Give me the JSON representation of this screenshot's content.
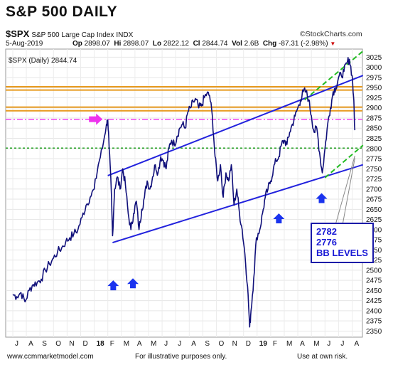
{
  "header": {
    "title": "S&P 500 DAILY",
    "symbol": "$SPX",
    "name": "S&P 500 Large Cap Index",
    "exchange": "INDX",
    "brand": "©StockCharts.com",
    "date": "5-Aug-2019",
    "op_label": "Op",
    "op": "2898.07",
    "hi_label": "Hi",
    "hi": "2898.07",
    "lo_label": "Lo",
    "lo": "2822.12",
    "cl_label": "Cl",
    "cl": "2844.74",
    "vol_label": "Vol",
    "vol": "2.6B",
    "chg_label": "Chg",
    "chg": "-87.31 (-2.98%)",
    "chg_marker": "▼"
  },
  "footer": {
    "website": "www.ccmmarketmodel.com",
    "disclaimer": "For illustrative purposes only.",
    "risk": "Use at own risk."
  },
  "colors": {
    "price": "#10107a",
    "channel": "#2222dd",
    "orange": "#e89a1e",
    "magenta": "#ee33ee",
    "green": "#119911",
    "lime": "#22bb22",
    "arrow": "#1a33ee"
  },
  "annotations": {
    "bb_levels": [
      "2782",
      "2776",
      "BB LEVELS"
    ]
  },
  "chart_data": {
    "type": "line",
    "series_label": "$SPX (Daily) 2844.74",
    "x_tick_labels": [
      "J",
      "A",
      "S",
      "O",
      "N",
      "D",
      "18",
      "F",
      "M",
      "A",
      "M",
      "J",
      "J",
      "A",
      "S",
      "O",
      "N",
      "D",
      "19",
      "F",
      "M",
      "A",
      "M",
      "J",
      "J",
      "A"
    ],
    "y_ticks": [
      2350,
      2375,
      2400,
      2425,
      2450,
      2475,
      2500,
      2525,
      2550,
      2575,
      2600,
      2625,
      2650,
      2675,
      2700,
      2725,
      2750,
      2775,
      2800,
      2825,
      2850,
      2875,
      2900,
      2925,
      2950,
      2975,
      3000,
      3025
    ],
    "ylim": [
      2335,
      3045
    ],
    "months": [
      "Jul-17",
      "Aug-17",
      "Sep-17",
      "Oct-17",
      "Nov-17",
      "Dec-17",
      "Jan-18",
      "Feb-18",
      "Mar-18",
      "Apr-18",
      "May-18",
      "Jun-18",
      "Jul-18",
      "Aug-18",
      "Sep-18",
      "Oct-18",
      "Nov-18",
      "Dec-18",
      "Jan-19",
      "Feb-19",
      "Mar-19",
      "Apr-19",
      "May-19",
      "Jun-19",
      "Jul-19",
      "Aug-19"
    ],
    "price": [
      [
        0.0,
        2440
      ],
      [
        0.3,
        2435
      ],
      [
        0.6,
        2445
      ],
      [
        0.9,
        2422
      ],
      [
        1.2,
        2450
      ],
      [
        1.5,
        2465
      ],
      [
        1.8,
        2470
      ],
      [
        2.1,
        2478
      ],
      [
        2.4,
        2500
      ],
      [
        2.7,
        2515
      ],
      [
        3.0,
        2530
      ],
      [
        3.3,
        2545
      ],
      [
        3.6,
        2555
      ],
      [
        3.9,
        2570
      ],
      [
        4.2,
        2580
      ],
      [
        4.5,
        2590
      ],
      [
        4.8,
        2600
      ],
      [
        5.1,
        2630
      ],
      [
        5.4,
        2660
      ],
      [
        5.7,
        2680
      ],
      [
        6.0,
        2700
      ],
      [
        6.3,
        2760
      ],
      [
        6.6,
        2800
      ],
      [
        6.9,
        2860
      ],
      [
        7.0,
        2870
      ],
      [
        7.1,
        2800
      ],
      [
        7.25,
        2700
      ],
      [
        7.35,
        2585
      ],
      [
        7.5,
        2700
      ],
      [
        7.7,
        2730
      ],
      [
        7.9,
        2700
      ],
      [
        8.1,
        2750
      ],
      [
        8.3,
        2710
      ],
      [
        8.5,
        2640
      ],
      [
        8.7,
        2600
      ],
      [
        8.9,
        2640
      ],
      [
        9.1,
        2670
      ],
      [
        9.3,
        2600
      ],
      [
        9.5,
        2650
      ],
      [
        9.7,
        2680
      ],
      [
        9.9,
        2720
      ],
      [
        10.1,
        2700
      ],
      [
        10.3,
        2730
      ],
      [
        10.5,
        2760
      ],
      [
        10.7,
        2740
      ],
      [
        10.9,
        2780
      ],
      [
        11.1,
        2770
      ],
      [
        11.3,
        2750
      ],
      [
        11.5,
        2800
      ],
      [
        11.7,
        2820
      ],
      [
        11.9,
        2810
      ],
      [
        12.1,
        2830
      ],
      [
        12.3,
        2850
      ],
      [
        12.5,
        2860
      ],
      [
        12.7,
        2850
      ],
      [
        12.9,
        2890
      ],
      [
        13.1,
        2900
      ],
      [
        13.3,
        2915
      ],
      [
        13.5,
        2920
      ],
      [
        13.7,
        2900
      ],
      [
        13.9,
        2905
      ],
      [
        14.1,
        2925
      ],
      [
        14.3,
        2935
      ],
      [
        14.5,
        2930
      ],
      [
        14.7,
        2880
      ],
      [
        14.9,
        2780
      ],
      [
        15.1,
        2720
      ],
      [
        15.3,
        2760
      ],
      [
        15.5,
        2680
      ],
      [
        15.7,
        2740
      ],
      [
        15.9,
        2720
      ],
      [
        16.1,
        2760
      ],
      [
        16.3,
        2660
      ],
      [
        16.5,
        2700
      ],
      [
        16.7,
        2640
      ],
      [
        16.9,
        2600
      ],
      [
        17.1,
        2540
      ],
      [
        17.3,
        2460
      ],
      [
        17.45,
        2360
      ],
      [
        17.55,
        2400
      ],
      [
        17.75,
        2480
      ],
      [
        17.95,
        2580
      ],
      [
        18.2,
        2600
      ],
      [
        18.4,
        2640
      ],
      [
        18.6,
        2680
      ],
      [
        18.8,
        2700
      ],
      [
        19.0,
        2720
      ],
      [
        19.2,
        2750
      ],
      [
        19.4,
        2770
      ],
      [
        19.6,
        2780
      ],
      [
        19.8,
        2810
      ],
      [
        20.0,
        2820
      ],
      [
        20.2,
        2810
      ],
      [
        20.4,
        2840
      ],
      [
        20.6,
        2860
      ],
      [
        20.8,
        2880
      ],
      [
        21.0,
        2900
      ],
      [
        21.2,
        2920
      ],
      [
        21.4,
        2940
      ],
      [
        21.6,
        2940
      ],
      [
        21.8,
        2920
      ],
      [
        22.0,
        2880
      ],
      [
        22.2,
        2840
      ],
      [
        22.4,
        2850
      ],
      [
        22.6,
        2790
      ],
      [
        22.8,
        2740
      ],
      [
        23.0,
        2800
      ],
      [
        23.2,
        2860
      ],
      [
        23.4,
        2900
      ],
      [
        23.6,
        2940
      ],
      [
        23.8,
        2950
      ],
      [
        24.0,
        2975
      ],
      [
        24.2,
        2980
      ],
      [
        24.4,
        2990
      ],
      [
        24.6,
        3010
      ],
      [
        24.8,
        3020
      ],
      [
        25.0,
        2980
      ],
      [
        25.1,
        2930
      ],
      [
        25.2,
        2845
      ]
    ],
    "horizontal_levels": [
      {
        "name": "orange-band-upper-high",
        "value": 2952,
        "color": "orange"
      },
      {
        "name": "orange-band-upper-low",
        "value": 2944,
        "color": "orange"
      },
      {
        "name": "orange-band-lower-high",
        "value": 2902,
        "color": "orange"
      },
      {
        "name": "orange-band-lower-low",
        "value": 2893,
        "color": "orange"
      },
      {
        "name": "magenta-dashdot-level",
        "value": 2872,
        "color": "magenta"
      },
      {
        "name": "green-dashed-level",
        "value": 2801,
        "color": "green"
      }
    ],
    "trend_lines": [
      {
        "name": "channel-upper-line",
        "from": [
          7.0,
          2733
        ],
        "to": [
          25.8,
          2980
        ],
        "color": "channel"
      },
      {
        "name": "channel-lower-line",
        "from": [
          7.35,
          2568
        ],
        "to": [
          25.8,
          2760
        ],
        "color": "channel"
      },
      {
        "name": "lime-upper-dashed",
        "from": [
          21.5,
          2920
        ],
        "to": [
          25.8,
          3040
        ],
        "color": "lime"
      },
      {
        "name": "lime-lower-dashed",
        "from": [
          23.0,
          2728
        ],
        "to": [
          25.8,
          2808
        ],
        "color": "lime"
      }
    ],
    "up_arrows": [
      {
        "name": "up-arrow-feb18",
        "x": 7.4,
        "value": 2475
      },
      {
        "name": "up-arrow-apr18",
        "x": 8.85,
        "value": 2480
      },
      {
        "name": "up-arrow-feb19",
        "x": 19.6,
        "value": 2640
      },
      {
        "name": "up-arrow-jun19",
        "x": 22.75,
        "value": 2690
      }
    ],
    "magenta_pointer": {
      "x": 6.45,
      "value": 2872
    },
    "bb_callout_targets": [
      {
        "x": 25.2,
        "value": 2782
      },
      {
        "x": 25.2,
        "value": 2776
      }
    ]
  }
}
